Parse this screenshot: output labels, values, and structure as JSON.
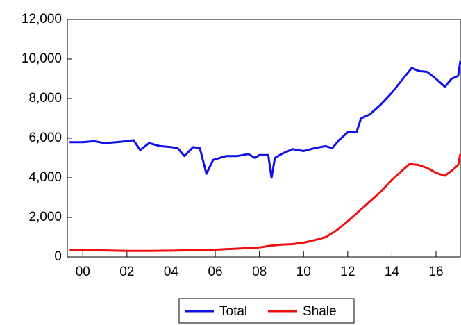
{
  "chart_data": {
    "type": "line",
    "xlim": [
      -0.7,
      17.1
    ],
    "ylim": [
      0,
      12000
    ],
    "xticks": [
      {
        "value": 0,
        "label": "00"
      },
      {
        "value": 2,
        "label": "02"
      },
      {
        "value": 4,
        "label": "04"
      },
      {
        "value": 6,
        "label": "06"
      },
      {
        "value": 8,
        "label": "08"
      },
      {
        "value": 10,
        "label": "10"
      },
      {
        "value": 12,
        "label": "12"
      },
      {
        "value": 14,
        "label": "14"
      },
      {
        "value": 16,
        "label": "16"
      }
    ],
    "yticks": [
      0,
      {
        "value": 2000,
        "label": "2,000"
      },
      {
        "value": 4000,
        "label": "4,000"
      },
      {
        "value": 6000,
        "label": "6,000"
      },
      {
        "value": 8000,
        "label": "8,000"
      },
      {
        "value": 10000,
        "label": "10,000"
      },
      {
        "value": 12000,
        "label": "12,000"
      }
    ],
    "legend": "bottom",
    "series": [
      {
        "name": "Total",
        "color": "#1010e8",
        "x": [
          -0.6,
          0,
          0.5,
          1,
          1.5,
          2,
          2.3,
          2.6,
          3,
          3.5,
          4,
          4.3,
          4.6,
          5,
          5.3,
          5.6,
          5.9,
          6.5,
          7,
          7.5,
          7.8,
          8,
          8.4,
          8.55,
          8.7,
          9,
          9.5,
          10,
          10.5,
          11,
          11.3,
          11.6,
          12,
          12.4,
          12.6,
          13,
          13.5,
          14,
          14.5,
          14.9,
          15.2,
          15.6,
          16,
          16.4,
          16.7,
          17,
          17.1
        ],
        "values": [
          5800,
          5800,
          5850,
          5750,
          5800,
          5850,
          5900,
          5400,
          5750,
          5600,
          5550,
          5500,
          5100,
          5550,
          5500,
          4200,
          4900,
          5100,
          5100,
          5200,
          5000,
          5150,
          5150,
          4000,
          5000,
          5200,
          5450,
          5350,
          5500,
          5600,
          5500,
          5900,
          6300,
          6300,
          7000,
          7200,
          7700,
          8300,
          9000,
          9550,
          9400,
          9350,
          9000,
          8600,
          9000,
          9150,
          9900
        ]
      },
      {
        "name": "Shale",
        "color": "#ee1010",
        "x": [
          -0.6,
          0,
          1,
          2,
          3,
          4,
          5,
          6,
          7,
          8,
          8.5,
          9,
          9.5,
          10,
          10.5,
          11,
          11.5,
          12,
          12.5,
          13,
          13.5,
          14,
          14.5,
          14.8,
          15.2,
          15.6,
          16,
          16.4,
          16.7,
          17,
          17.1
        ],
        "values": [
          350,
          350,
          330,
          310,
          310,
          320,
          340,
          370,
          420,
          480,
          570,
          620,
          650,
          720,
          850,
          1000,
          1350,
          1800,
          2300,
          2800,
          3300,
          3900,
          4400,
          4700,
          4650,
          4500,
          4250,
          4100,
          4350,
          4650,
          5200
        ]
      }
    ]
  }
}
